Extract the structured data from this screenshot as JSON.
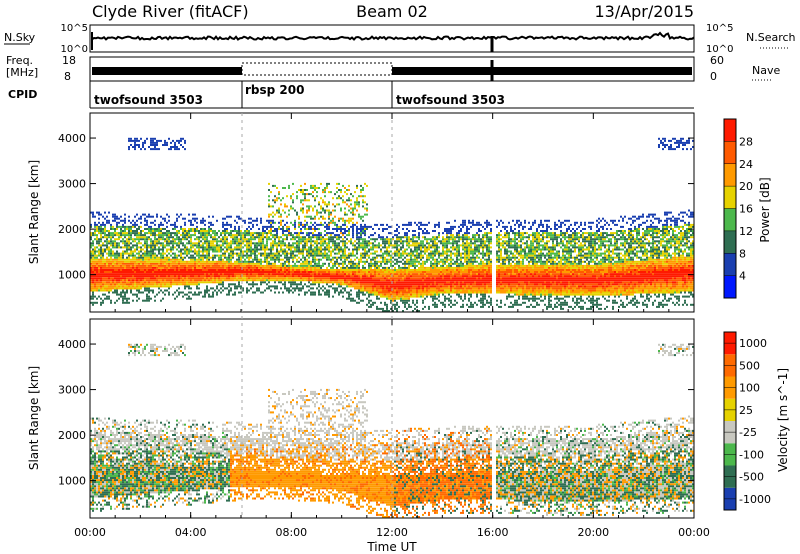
{
  "header": {
    "station": "Clyde River (fitACF)",
    "beam": "Beam 02",
    "date": "13/Apr/2015"
  },
  "summary_labels": {
    "nsky": "N.Sky",
    "nsearch": "N.Search",
    "freq_line1": "Freq.",
    "freq_line2": "[MHz]",
    "nave": "Nave",
    "cpid": "CPID",
    "log_top": "10^5",
    "log_bottom": "10^0",
    "freq_top": "18",
    "freq_bottom": "8",
    "nave_top": "60",
    "nave_bottom": "0"
  },
  "cpid_segments": [
    {
      "label": "twofsound 3503",
      "start_hour": 0,
      "end_hour": 6
    },
    {
      "label": "rbsp 200",
      "start_hour": 6,
      "end_hour": 12
    },
    {
      "label": "twofsound 3503",
      "start_hour": 12,
      "end_hour": 24
    }
  ],
  "power_scale": {
    "title": "Power [dB]",
    "ticks": [
      "4",
      "8",
      "12",
      "16",
      "20",
      "24",
      "28"
    ],
    "colors": [
      "#0018ff",
      "#1a3fb0",
      "#2f6e52",
      "#4cb84c",
      "#e6d200",
      "#ff9a00",
      "#ff5a00",
      "#ff1a00"
    ]
  },
  "velocity_scale": {
    "title": "Velocity [m s^-1]",
    "ticks": [
      "1000",
      "500",
      "100",
      "25",
      "-25",
      "-100",
      "-500",
      "-1000"
    ],
    "colors": [
      "#1a3fb0",
      "#2f6e52",
      "#4cb84c",
      "#c8c8c0",
      "#e6d200",
      "#ff9a00",
      "#ff6a00",
      "#ff1a00"
    ]
  },
  "chart_data": [
    {
      "type": "heatmap",
      "name": "power",
      "ylabel": "Slant Range [km]",
      "xlabel": "Time UT",
      "x_ticks": [
        "00:00",
        "04:00",
        "08:00",
        "12:00",
        "16:00",
        "20:00",
        "00:00"
      ],
      "x_range_hours": [
        0,
        24
      ],
      "y_ticks": [
        1000,
        2000,
        3000,
        4000
      ],
      "ylim": [
        180,
        4550
      ],
      "colorbar": "Power [dB]",
      "colorbar_ticks": [
        4,
        8,
        12,
        16,
        20,
        24,
        28
      ],
      "main_echo_band_km": [
        [
          0,
          600,
          1350
        ],
        [
          4,
          750,
          1300
        ],
        [
          6,
          850,
          1250
        ],
        [
          8,
          850,
          1150
        ],
        [
          10,
          750,
          1100
        ],
        [
          12,
          400,
          1100
        ],
        [
          14,
          550,
          1150
        ],
        [
          16,
          550,
          1200
        ],
        [
          20,
          500,
          1200
        ],
        [
          24,
          600,
          1400
        ]
      ]
    },
    {
      "type": "heatmap",
      "name": "velocity",
      "ylabel": "Slant Range [km]",
      "xlabel": "Time UT",
      "x_ticks": [
        "00:00",
        "04:00",
        "08:00",
        "12:00",
        "16:00",
        "20:00",
        "00:00"
      ],
      "x_range_hours": [
        0,
        24
      ],
      "y_ticks": [
        1000,
        2000,
        3000,
        4000
      ],
      "ylim": [
        180,
        4550
      ],
      "colorbar": "Velocity [m s-1]",
      "colorbar_ticks": [
        1000,
        500,
        100,
        25,
        -25,
        -100,
        -500,
        -1000
      ]
    }
  ],
  "xlabel_text": "Time UT"
}
